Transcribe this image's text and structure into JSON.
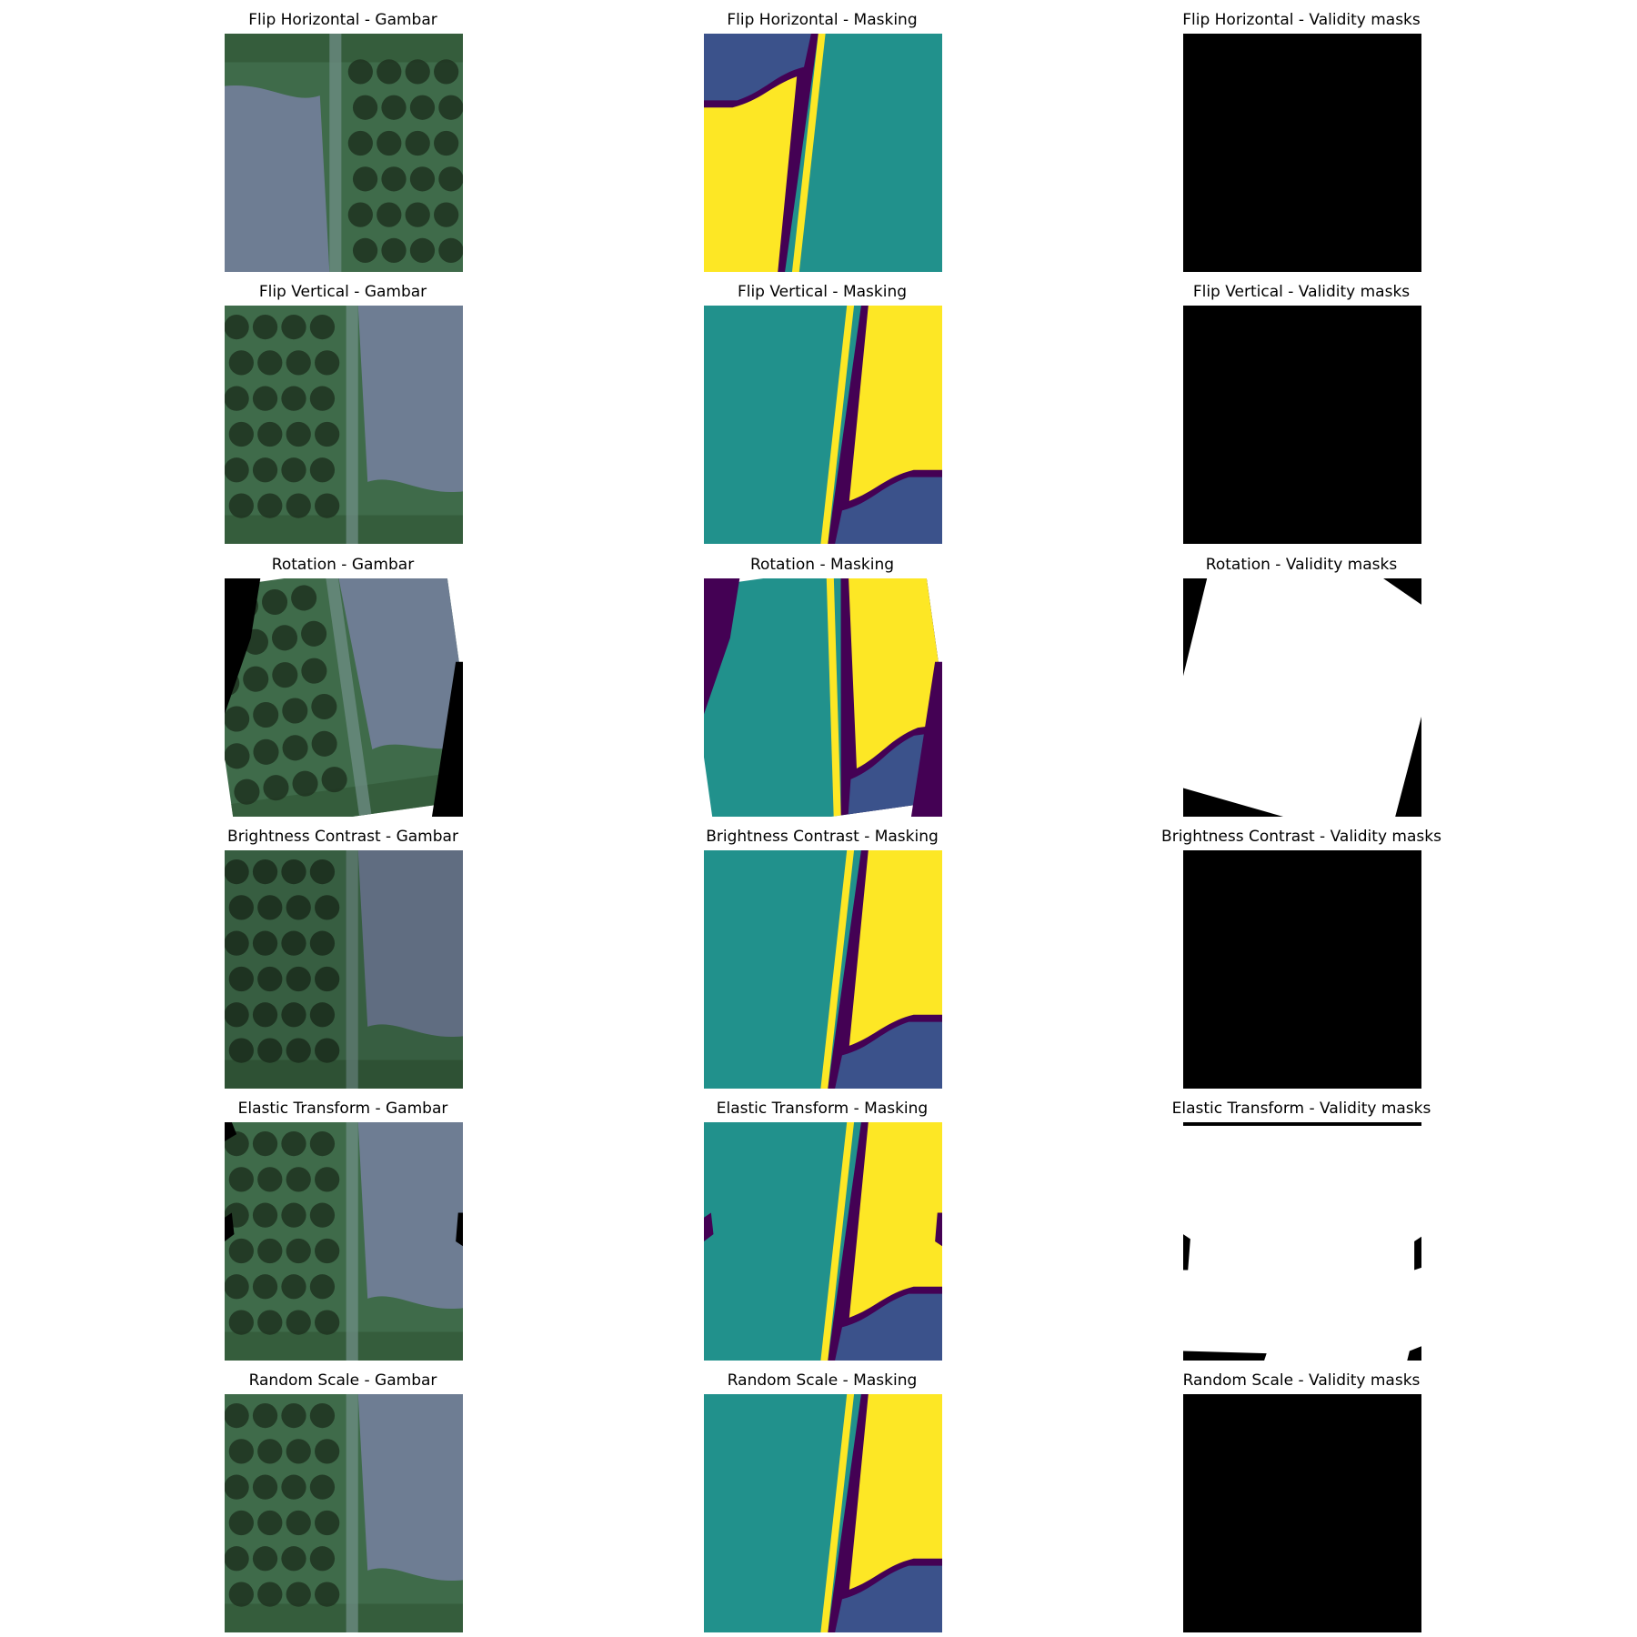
{
  "figure": {
    "rows": [
      {
        "augmentation": "Flip Horizontal",
        "titles": [
          "Flip Horizontal - Gambar",
          "Flip Horizontal - Masking",
          "Flip Horizontal - Validity masks"
        ]
      },
      {
        "augmentation": "Flip Vertical",
        "titles": [
          "Flip Vertical - Gambar",
          "Flip Vertical - Masking",
          "Flip Vertical - Validity masks"
        ]
      },
      {
        "augmentation": "Rotation",
        "titles": [
          "Rotation - Gambar",
          "Rotation - Masking",
          "Rotation - Validity masks"
        ]
      },
      {
        "augmentation": "Brightness Contrast",
        "titles": [
          "Brightness Contrast - Gambar",
          "Brightness Contrast - Masking",
          "Brightness Contrast - Validity masks"
        ]
      },
      {
        "augmentation": "Elastic Transform",
        "titles": [
          "Elastic Transform - Gambar",
          "Elastic Transform - Masking",
          "Elastic Transform - Validity masks"
        ]
      },
      {
        "augmentation": "Random Scale",
        "titles": [
          "Random Scale - Gambar",
          "Random Scale - Masking",
          "Random Scale - Validity masks"
        ]
      }
    ],
    "colors": {
      "mask_class_0": "#440154",
      "mask_class_1": "#3b528b",
      "mask_class_2": "#21918c",
      "mask_class_3": "#fde725",
      "validity_valid": "#ffffff",
      "validity_invalid": "#000000",
      "image_vegetation": "#3f6b4a",
      "image_soil": "#6e7d93",
      "image_tree_crown": "#1f3320"
    }
  }
}
